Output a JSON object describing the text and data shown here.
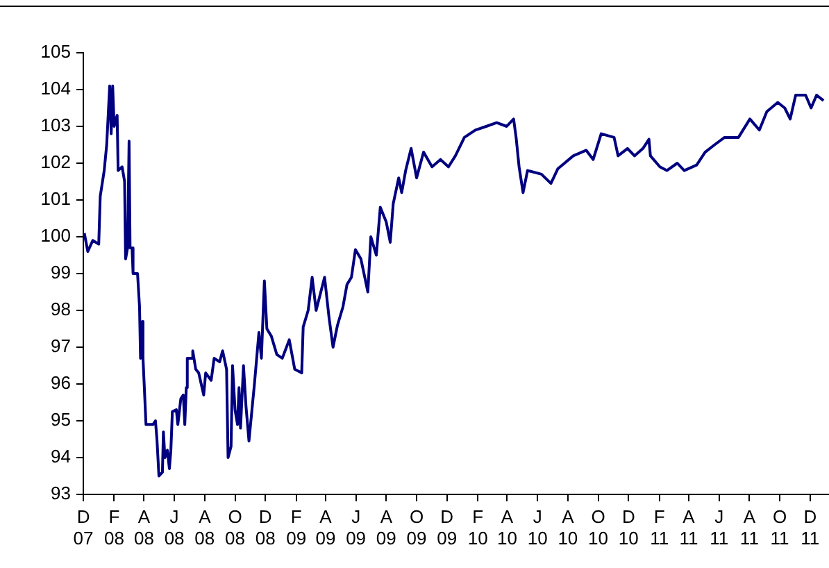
{
  "chart_data": {
    "type": "line",
    "grid": false,
    "legend": false,
    "marker": "none",
    "line_style": "solid",
    "xlim": [
      "2007-12-01",
      "2012-01-08"
    ],
    "ylim": [
      93,
      105
    ],
    "yticks": [
      93,
      94,
      95,
      96,
      97,
      98,
      99,
      100,
      101,
      102,
      103,
      104,
      105
    ],
    "xticks": [
      {
        "value": "2007-12-01",
        "label": "D 07"
      },
      {
        "value": "2008-02-01",
        "label": "F 08"
      },
      {
        "value": "2008-04-01",
        "label": "A 08"
      },
      {
        "value": "2008-06-01",
        "label": "J 08"
      },
      {
        "value": "2008-08-01",
        "label": "A 08"
      },
      {
        "value": "2008-10-01",
        "label": "O 08"
      },
      {
        "value": "2008-12-01",
        "label": "D 08"
      },
      {
        "value": "2009-02-01",
        "label": "F 09"
      },
      {
        "value": "2009-04-01",
        "label": "A 09"
      },
      {
        "value": "2009-06-01",
        "label": "J 09"
      },
      {
        "value": "2009-08-01",
        "label": "A 09"
      },
      {
        "value": "2009-10-01",
        "label": "O 09"
      },
      {
        "value": "2009-12-01",
        "label": "D 09"
      },
      {
        "value": "2010-02-01",
        "label": "F 10"
      },
      {
        "value": "2010-04-01",
        "label": "A 10"
      },
      {
        "value": "2010-06-01",
        "label": "J 10"
      },
      {
        "value": "2010-08-01",
        "label": "A 10"
      },
      {
        "value": "2010-10-01",
        "label": "O 10"
      },
      {
        "value": "2010-12-01",
        "label": "D 10"
      },
      {
        "value": "2011-02-01",
        "label": "F 11"
      },
      {
        "value": "2011-04-01",
        "label": "A 11"
      },
      {
        "value": "2011-06-01",
        "label": "J 11"
      },
      {
        "value": "2011-08-01",
        "label": "A 11"
      },
      {
        "value": "2011-10-01",
        "label": "O 11"
      },
      {
        "value": "2011-12-01",
        "label": "D 11"
      }
    ],
    "series": [
      {
        "color": "#000080",
        "x": [
          "2007-12-03",
          "2007-12-10",
          "2007-12-20",
          "2008-01-01",
          "2008-01-04",
          "2008-01-12",
          "2008-01-17",
          "2008-01-23",
          "2008-01-26",
          "2008-01-29",
          "2008-02-01",
          "2008-02-07",
          "2008-02-09",
          "2008-02-17",
          "2008-02-22",
          "2008-02-24",
          "2008-02-28",
          "2008-03-02",
          "2008-03-04",
          "2008-03-08",
          "2008-03-10",
          "2008-03-19",
          "2008-03-23",
          "2008-03-25",
          "2008-03-29",
          "2008-03-30",
          "2008-04-01",
          "2008-04-05",
          "2008-04-19",
          "2008-04-24",
          "2008-04-27",
          "2008-05-01",
          "2008-05-08",
          "2008-05-10",
          "2008-05-13",
          "2008-05-18",
          "2008-05-22",
          "2008-05-25",
          "2008-05-28",
          "2008-06-05",
          "2008-06-08",
          "2008-06-14",
          "2008-06-19",
          "2008-06-22",
          "2008-06-25",
          "2008-06-27",
          "2008-07-06",
          "2008-07-08",
          "2008-07-14",
          "2008-07-20",
          "2008-07-25",
          "2008-07-30",
          "2008-08-03",
          "2008-08-14",
          "2008-08-20",
          "2008-08-31",
          "2008-09-06",
          "2008-09-14",
          "2008-09-17",
          "2008-09-23",
          "2008-09-26",
          "2008-10-01",
          "2008-10-06",
          "2008-10-09",
          "2008-10-12",
          "2008-10-18",
          "2008-10-23",
          "2008-10-29",
          "2008-11-04",
          "2008-11-09",
          "2008-11-18",
          "2008-11-23",
          "2008-11-29",
          "2008-12-04",
          "2008-12-13",
          "2008-12-24",
          "2009-01-04",
          "2009-01-18",
          "2009-01-29",
          "2009-02-12",
          "2009-02-15",
          "2009-02-25",
          "2009-03-05",
          "2009-03-13",
          "2009-03-30",
          "2009-04-08",
          "2009-04-16",
          "2009-04-25",
          "2009-05-06",
          "2009-05-14",
          "2009-05-23",
          "2009-05-31",
          "2009-06-11",
          "2009-06-25",
          "2009-07-01",
          "2009-07-12",
          "2009-07-20",
          "2009-08-01",
          "2009-08-09",
          "2009-08-15",
          "2009-08-26",
          "2009-09-01",
          "2009-09-09",
          "2009-09-20",
          "2009-10-01",
          "2009-10-15",
          "2009-11-01",
          "2009-11-18",
          "2009-12-04",
          "2009-12-18",
          "2010-01-05",
          "2010-01-27",
          "2010-02-18",
          "2010-03-11",
          "2010-03-31",
          "2010-04-14",
          "2010-04-19",
          "2010-04-25",
          "2010-05-03",
          "2010-05-12",
          "2010-06-09",
          "2010-06-28",
          "2010-07-12",
          "2010-08-12",
          "2010-09-07",
          "2010-09-21",
          "2010-10-07",
          "2010-11-02",
          "2010-11-10",
          "2010-11-29",
          "2010-12-13",
          "2010-12-30",
          "2011-01-11",
          "2011-01-14",
          "2011-02-02",
          "2011-02-16",
          "2011-03-09",
          "2011-03-23",
          "2011-04-17",
          "2011-05-04",
          "2011-05-23",
          "2011-06-12",
          "2011-07-10",
          "2011-08-02",
          "2011-08-21",
          "2011-09-05",
          "2011-09-27",
          "2011-10-11",
          "2011-10-22",
          "2011-11-02",
          "2011-11-22",
          "2011-12-03",
          "2011-12-14",
          "2011-12-28"
        ],
        "values": [
          100.1,
          99.6,
          99.9,
          99.8,
          101.1,
          101.8,
          102.5,
          104.1,
          102.8,
          104.1,
          103.0,
          103.3,
          101.8,
          101.9,
          101.5,
          99.4,
          99.7,
          102.6,
          99.7,
          99.7,
          99.0,
          99.0,
          98.1,
          96.7,
          97.7,
          96.7,
          96.1,
          94.9,
          94.9,
          95.0,
          94.5,
          93.5,
          93.6,
          94.7,
          94.0,
          94.2,
          93.7,
          94.2,
          95.25,
          95.3,
          94.9,
          95.6,
          95.7,
          94.9,
          95.9,
          96.7,
          96.7,
          96.9,
          96.4,
          96.3,
          96.0,
          95.7,
          96.3,
          96.1,
          96.7,
          96.6,
          96.9,
          96.4,
          94.0,
          94.3,
          96.5,
          95.3,
          94.9,
          95.9,
          94.8,
          96.5,
          95.4,
          94.45,
          95.3,
          96.0,
          97.4,
          96.7,
          98.8,
          97.5,
          97.3,
          96.8,
          96.7,
          97.2,
          96.4,
          96.3,
          97.55,
          98.0,
          98.9,
          98.0,
          98.9,
          97.8,
          97.0,
          97.6,
          98.1,
          98.7,
          98.9,
          99.65,
          99.4,
          98.5,
          100.0,
          99.5,
          100.8,
          100.4,
          99.85,
          100.9,
          101.6,
          101.2,
          101.8,
          102.4,
          101.6,
          102.3,
          101.9,
          102.1,
          101.9,
          102.2,
          102.7,
          102.9,
          103.0,
          103.1,
          103.0,
          103.2,
          102.7,
          101.9,
          101.2,
          101.8,
          101.7,
          101.45,
          101.85,
          102.2,
          102.35,
          102.1,
          102.8,
          102.7,
          102.2,
          102.4,
          102.2,
          102.4,
          102.65,
          102.2,
          101.9,
          101.8,
          102.0,
          101.8,
          101.95,
          102.3,
          102.5,
          102.7,
          102.7,
          103.2,
          102.9,
          103.4,
          103.65,
          103.5,
          103.2,
          103.85,
          103.85,
          103.5,
          103.85,
          103.7
        ]
      }
    ]
  }
}
